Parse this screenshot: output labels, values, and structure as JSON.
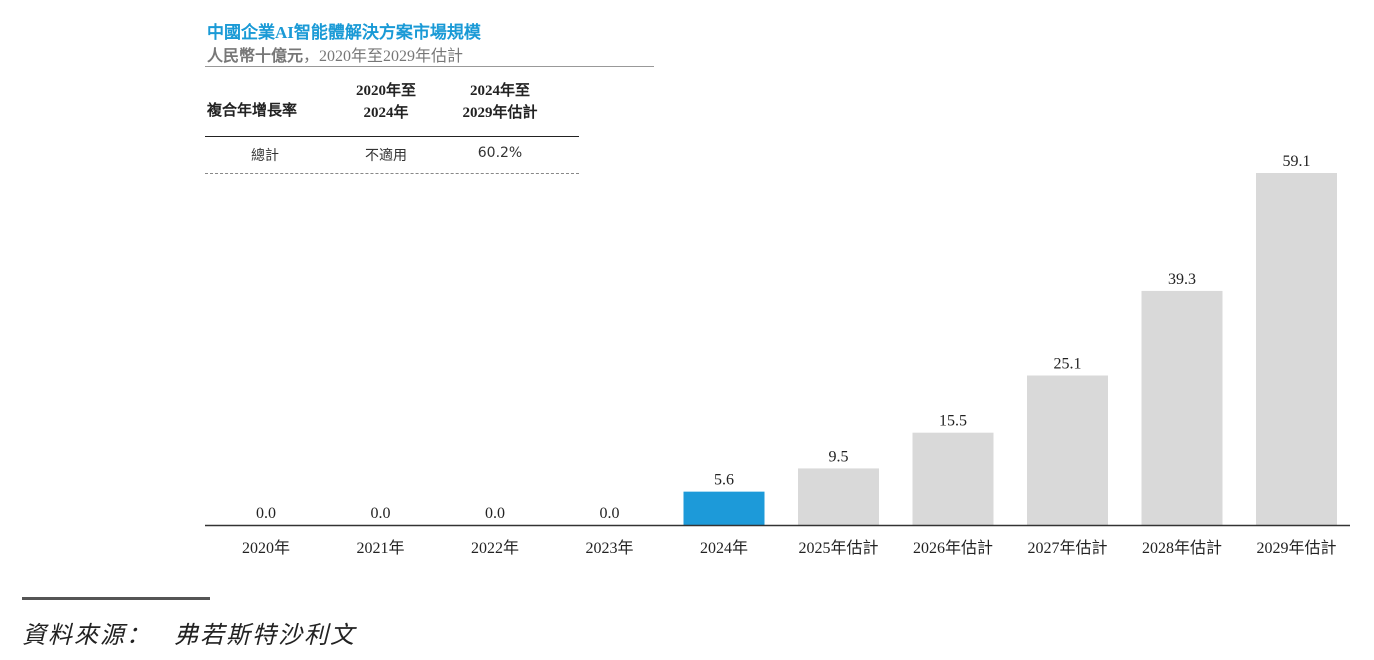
{
  "header": {
    "title": "中國企業AI智能體解決方案市場規模",
    "unit": "人民幣十億元",
    "period": "，2020年至2029年估計"
  },
  "cagr_table": {
    "label": "複合年增長率",
    "periods": [
      "2020年至\n2024年",
      "2024年至\n2029年估計"
    ],
    "row": {
      "label": "總計",
      "values": [
        "不適用",
        "60.2%"
      ]
    }
  },
  "colors": {
    "highlight": "#1d9ad9",
    "bar": "#d9d9d9",
    "axis": "#333333",
    "title": "#1a9ad6"
  },
  "chart_data": {
    "type": "bar",
    "title": "中國企業AI智能體解決方案市場規模",
    "categories": [
      "2020年",
      "2021年",
      "2022年",
      "2023年",
      "2024年",
      "2025年估計",
      "2026年估計",
      "2027年估計",
      "2028年估計",
      "2029年估計"
    ],
    "values": [
      0.0,
      0.0,
      0.0,
      0.0,
      5.6,
      9.5,
      15.5,
      25.1,
      39.3,
      59.1
    ],
    "value_labels": [
      "0.0",
      "0.0",
      "0.0",
      "0.0",
      "5.6",
      "9.5",
      "15.5",
      "25.1",
      "39.3",
      "59.1"
    ],
    "highlight_index": 4,
    "ylabel": "人民幣十億元",
    "ylim": [
      0,
      59.1
    ],
    "grid": false,
    "legend": "none"
  },
  "source": {
    "label": "資料來源：",
    "text": "弗若斯特沙利文"
  }
}
